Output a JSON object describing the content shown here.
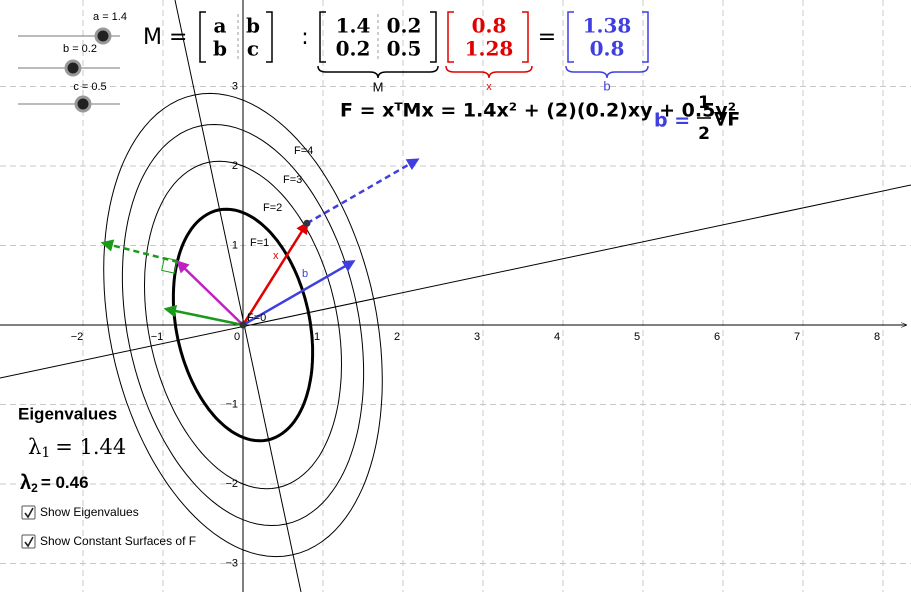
{
  "sliders": [
    {
      "label": "a = 1.4"
    },
    {
      "label": "b = 0.2"
    },
    {
      "label": "c = 0.5"
    }
  ],
  "symbolic": {
    "lhs": "M =",
    "rows": [
      [
        "a",
        "b"
      ],
      [
        "b",
        "c"
      ]
    ]
  },
  "separator": ":",
  "M": {
    "rows": [
      [
        "1.4",
        "0.2"
      ],
      [
        "0.2",
        "0.5"
      ]
    ],
    "caption": "M"
  },
  "x": {
    "rows": [
      "0.8",
      "1.28"
    ],
    "caption": "x"
  },
  "equals": "=",
  "b": {
    "rows": [
      "1.38",
      "0.8"
    ],
    "caption": "b"
  },
  "formula": "F = xᵀMx = 1.4x² + (2)(0.2)xy + 0.5y²",
  "gradient": {
    "lhs": "b =",
    "numerator": "1",
    "denominator": "2",
    "rhs": "∇F"
  },
  "contours": [
    {
      "level": 1,
      "label": "F=1"
    },
    {
      "level": 2,
      "label": "F=2"
    },
    {
      "level": 3,
      "label": "F=3"
    },
    {
      "level": 4,
      "label": "F=4"
    }
  ],
  "origin_label": "F=0",
  "vector_labels": {
    "x": "x",
    "b": "b"
  },
  "axes": {
    "x_ticks": [
      {
        "value": -2,
        "label": "−2"
      },
      {
        "value": -1,
        "label": "−1"
      },
      0,
      1,
      2,
      3,
      4,
      5,
      6,
      7,
      8
    ],
    "y_ticks": [
      {
        "value": -3,
        "label": "−3"
      },
      {
        "value": -2,
        "label": "−2"
      },
      {
        "value": -1,
        "label": "−1"
      },
      1,
      2,
      3
    ]
  },
  "eigen": {
    "title": "Eigenvalues",
    "items": [
      {
        "symbol": "λ",
        "index": "1",
        "text": "= 1.44"
      },
      {
        "symbol": "λ",
        "index": "2",
        "text": "= 0.46"
      }
    ]
  },
  "checkboxes": [
    {
      "label": "Show Eigenvalues",
      "checked": true
    },
    {
      "label": "Show Constant Surfaces of F",
      "checked": true
    }
  ]
}
